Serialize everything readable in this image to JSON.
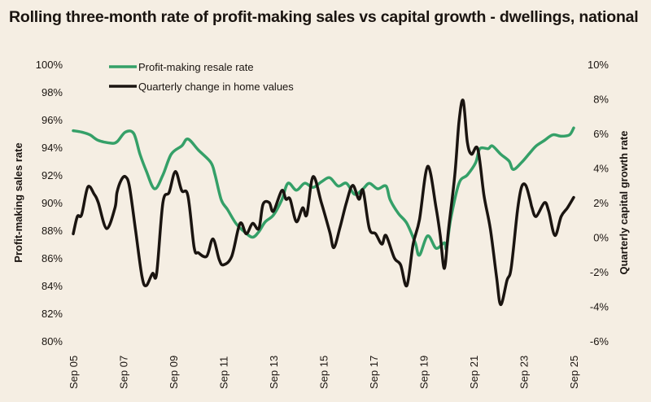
{
  "chart_data": {
    "type": "line",
    "title": "Rolling three-month rate of profit-making sales vs capital growth - dwellings, national",
    "xlabel": "",
    "ylabel_left": "Profit-making sales rate",
    "ylabel_right": "Quarterly capital growth rate",
    "xlim": [
      "2005-09",
      "2025-09"
    ],
    "ylim_left": [
      80,
      100
    ],
    "ylim_right": [
      -6,
      10
    ],
    "x_ticks": [
      "Sep 05",
      "Sep 07",
      "Sep 09",
      "Sep 11",
      "Sep 13",
      "Sep 15",
      "Sep 17",
      "Sep 19",
      "Sep 21",
      "Sep 23",
      "Sep 25"
    ],
    "y_ticks_left": [
      "80%",
      "82%",
      "84%",
      "86%",
      "88%",
      "90%",
      "92%",
      "94%",
      "96%",
      "98%",
      "100%"
    ],
    "y_ticks_right": [
      "-6%",
      "-4%",
      "-2%",
      "0%",
      "2%",
      "4%",
      "6%",
      "8%",
      "10%"
    ],
    "grid": false,
    "legend_position": "top-left",
    "series": [
      {
        "name": "Profit-making resale rate",
        "axis": "left",
        "color": "#35a068",
        "x": [
          "2005-09",
          "2006-01",
          "2006-05",
          "2006-09",
          "2007-03",
          "2007-06",
          "2007-10",
          "2008-02",
          "2008-05",
          "2008-08",
          "2008-12",
          "2009-04",
          "2009-08",
          "2010-01",
          "2010-04",
          "2010-09",
          "2011-03",
          "2011-05",
          "2011-08",
          "2011-11",
          "2012-03",
          "2012-07",
          "2012-11",
          "2013-02",
          "2013-05",
          "2013-09",
          "2014-01",
          "2014-04",
          "2014-08",
          "2014-12",
          "2015-04",
          "2015-08",
          "2015-12",
          "2016-04",
          "2016-08",
          "2016-12",
          "2017-04",
          "2017-07",
          "2017-11",
          "2018-03",
          "2018-05",
          "2018-09",
          "2019-01",
          "2019-05",
          "2019-07",
          "2019-11",
          "2020-03",
          "2020-07",
          "2020-08",
          "2020-10",
          "2021-02",
          "2021-06",
          "2021-10",
          "2021-12",
          "2022-04",
          "2022-06",
          "2022-10",
          "2023-02",
          "2023-04",
          "2023-08",
          "2023-12",
          "2024-03",
          "2024-07",
          "2024-11",
          "2025-03",
          "2025-07",
          "2025-09"
        ],
        "values": [
          95.2,
          95.1,
          94.9,
          94.5,
          94.3,
          94.4,
          95.1,
          95.0,
          93.5,
          92.3,
          91.0,
          92.0,
          93.5,
          94.1,
          94.6,
          93.8,
          92.9,
          92.0,
          90.2,
          89.5,
          88.5,
          87.9,
          87.5,
          87.9,
          88.6,
          89.1,
          90.2,
          91.4,
          90.9,
          91.4,
          91.1,
          91.5,
          91.8,
          91.2,
          91.4,
          90.6,
          91.0,
          91.4,
          91.0,
          91.2,
          90.2,
          89.2,
          88.5,
          87.1,
          86.2,
          87.6,
          86.7,
          87.1,
          86.7,
          88.8,
          91.4,
          92.0,
          92.9,
          93.9,
          93.9,
          94.1,
          93.5,
          93.0,
          92.4,
          92.9,
          93.6,
          94.1,
          94.5,
          94.9,
          94.8,
          94.9,
          95.4
        ]
      },
      {
        "name": "Quarterly change in home values",
        "axis": "right",
        "color": "#1a1410",
        "x": [
          "2005-09",
          "2005-11",
          "2006-01",
          "2006-04",
          "2006-07",
          "2006-09",
          "2007-01",
          "2007-05",
          "2007-06",
          "2007-08",
          "2007-10",
          "2007-12",
          "2008-03",
          "2008-06",
          "2008-08",
          "2008-11",
          "2009-01",
          "2009-04",
          "2009-07",
          "2009-10",
          "2010-01",
          "2010-04",
          "2010-07",
          "2010-09",
          "2011-01",
          "2011-04",
          "2011-07",
          "2011-09",
          "2012-01",
          "2012-05",
          "2012-08",
          "2012-11",
          "2013-02",
          "2013-04",
          "2013-07",
          "2013-09",
          "2014-01",
          "2014-03",
          "2014-05",
          "2014-08",
          "2014-11",
          "2015-01",
          "2015-04",
          "2015-08",
          "2015-12",
          "2016-02",
          "2016-05",
          "2016-08",
          "2016-11",
          "2017-02",
          "2017-04",
          "2017-07",
          "2017-10",
          "2018-01",
          "2018-03",
          "2018-07",
          "2018-10",
          "2019-01",
          "2019-04",
          "2019-07",
          "2019-11",
          "2020-03",
          "2020-05",
          "2020-07",
          "2020-09",
          "2020-12",
          "2021-02",
          "2021-04",
          "2021-06",
          "2021-08",
          "2021-11",
          "2022-02",
          "2022-05",
          "2022-08",
          "2022-10",
          "2023-01",
          "2023-03",
          "2023-06",
          "2023-08",
          "2023-10",
          "2023-12",
          "2024-01",
          "2024-03",
          "2024-07",
          "2024-09",
          "2024-12",
          "2025-03",
          "2025-06",
          "2025-09"
        ],
        "values": [
          0.2,
          1.2,
          1.3,
          2.9,
          2.5,
          2.0,
          0.5,
          1.7,
          2.6,
          3.3,
          3.5,
          2.9,
          0.3,
          -2.3,
          -2.8,
          -2.1,
          -2.1,
          2.0,
          2.6,
          3.8,
          2.7,
          2.4,
          -0.6,
          -0.9,
          -1.1,
          -0.1,
          -1.3,
          -1.6,
          -1.1,
          0.8,
          0.2,
          0.8,
          0.5,
          1.9,
          2.0,
          1.5,
          2.7,
          2.2,
          2.2,
          0.9,
          1.7,
          1.3,
          3.5,
          2.0,
          0.3,
          -0.6,
          0.6,
          2.0,
          3.0,
          2.2,
          2.7,
          0.5,
          0.2,
          -0.4,
          0.1,
          -1.2,
          -1.6,
          -2.8,
          -0.4,
          1.0,
          4.1,
          1.7,
          0.1,
          -1.8,
          0.5,
          3.6,
          6.7,
          7.9,
          5.5,
          4.8,
          5.1,
          2.4,
          0.5,
          -2.3,
          -3.9,
          -2.5,
          -1.8,
          1.5,
          2.9,
          3.0,
          2.2,
          1.7,
          1.2,
          2.0,
          1.5,
          0.1,
          1.2,
          1.7,
          2.3
        ]
      }
    ]
  }
}
